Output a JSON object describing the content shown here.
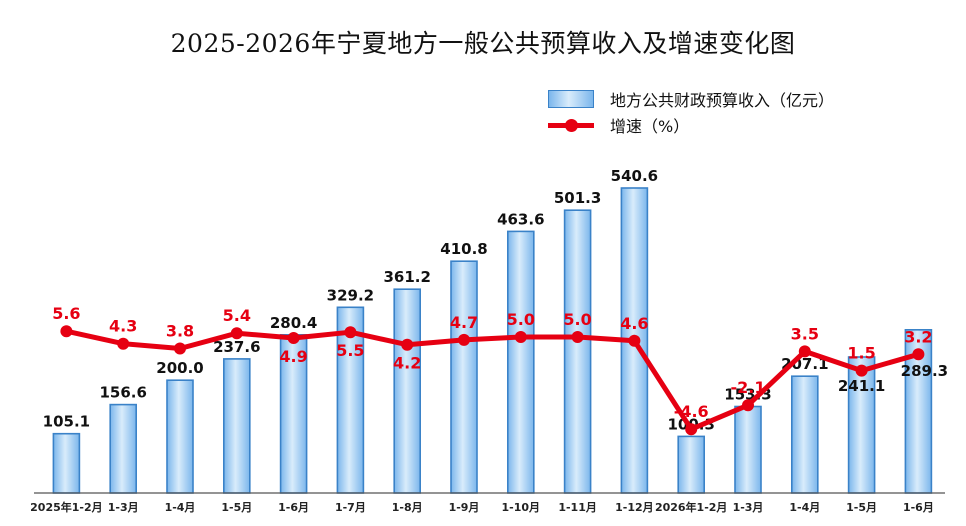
{
  "title": "2025-2026年宁夏地方一般公共预算收入及增速变化图",
  "legend": {
    "bar_label": "地方公共财政预算收入（亿元）",
    "line_label": "增速（%）"
  },
  "colors": {
    "bar_edge": "#3a82c8",
    "bar_light": "#d9ecfb",
    "bar_mid": "#7bb6ec",
    "line": "#e60012",
    "axis": "#555555"
  },
  "chart_data": {
    "type": "bar",
    "title": "2025-2026年宁夏地方一般公共预算收入及增速变化图",
    "categories": [
      "2025年1-2月",
      "1-3月",
      "1-4月",
      "1-5月",
      "1-6月",
      "1-7月",
      "1-8月",
      "1-9月",
      "1-10月",
      "1-11月",
      "1-12月",
      "2026年1-2月",
      "1-3月",
      "1-4月",
      "1-5月",
      "1-6月"
    ],
    "series": [
      {
        "name": "地方公共财政预算收入（亿元）",
        "type": "bar",
        "values": [
          105.1,
          156.6,
          200.0,
          237.6,
          280.4,
          329.2,
          361.2,
          410.8,
          463.6,
          501.3,
          540.6,
          100.3,
          153.3,
          207.1,
          241.1,
          289.3
        ],
        "labels": [
          "105.1",
          "156.6",
          "200.0",
          "237.6",
          "280.4",
          "329.2",
          "361.2",
          "410.8",
          "463.6",
          "501.3",
          "540.6",
          "100.3",
          "153.3",
          "207.1",
          "241.1",
          "289.3"
        ]
      },
      {
        "name": "增速（%）",
        "type": "line",
        "values": [
          5.6,
          4.3,
          3.8,
          5.4,
          4.9,
          5.5,
          4.2,
          4.7,
          5.0,
          5.0,
          4.6,
          -4.6,
          -2.1,
          3.5,
          1.5,
          3.2
        ],
        "labels": [
          "5.6",
          "4.3",
          "3.8",
          "5.4",
          "4.9",
          "5.5",
          "4.2",
          "4.7",
          "5.0",
          "5.0",
          "4.6",
          "-4.6",
          "-2.1",
          "3.5",
          "1.5",
          "3.2"
        ]
      }
    ],
    "bar_ylim": [
      0,
      600
    ],
    "line_ylim": [
      -20,
      20
    ],
    "grid": false,
    "legend_position": "top-right"
  }
}
